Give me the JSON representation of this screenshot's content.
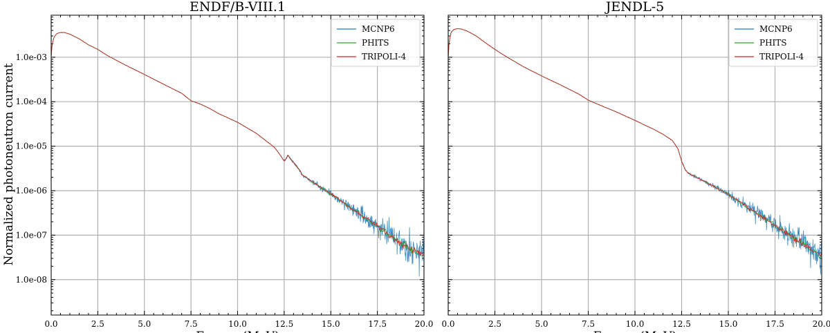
{
  "figure": {
    "ylabel": "Normalized photoneutron current"
  },
  "chart_data": [
    {
      "type": "line",
      "title": "ENDF/B-VIII.1",
      "xlabel": "Energy (MeV)",
      "ylabel": "Normalized photoneutron current",
      "xlim": [
        0,
        20
      ],
      "ylim": [
        1.6e-09,
        0.0088
      ],
      "yscale": "log",
      "grid": true,
      "legend_position": "top-right",
      "x_ticks": [
        0,
        2.5,
        5,
        7.5,
        10,
        12.5,
        15,
        17.5,
        20
      ],
      "x_tick_labels": [
        "0.0",
        "2.5",
        "5.0",
        "7.5",
        "10.0",
        "12.5",
        "15.0",
        "17.5",
        "20.0"
      ],
      "y_ticks": [
        0.001,
        0.0001,
        1e-05,
        1e-06,
        1e-07,
        1e-08
      ],
      "y_tick_labels": [
        "1.0e-03",
        "1.0e-04",
        "1.0e-05",
        "1.0e-06",
        "1.0e-07",
        "1.0e-08"
      ],
      "series": [
        {
          "name": "MCNP6",
          "color": "#1f77b4",
          "noise": "high"
        },
        {
          "name": "PHITS",
          "color": "#2ca02c",
          "noise": "low"
        },
        {
          "name": "TRIPOLI-4",
          "color": "#d62728",
          "noise": "low"
        }
      ],
      "reference_curve": {
        "x": [
          0,
          0.05,
          0.15,
          0.3,
          0.5,
          0.7,
          1.0,
          1.5,
          2.0,
          2.5,
          3.0,
          4.0,
          5.0,
          6.0,
          7.0,
          7.5,
          8.0,
          8.5,
          9.0,
          10.0,
          11.0,
          11.5,
          12.0,
          12.3,
          12.5,
          12.6,
          12.7,
          12.8,
          13.0,
          13.2,
          13.4,
          13.45,
          14.0,
          15.0,
          16.0,
          17.0,
          18.0,
          19.0,
          20.0
        ],
        "y": [
          0.00105,
          0.0019,
          0.0028,
          0.0034,
          0.0036,
          0.0036,
          0.0033,
          0.0026,
          0.0019,
          0.0015,
          0.0011,
          0.00066,
          0.00041,
          0.00025,
          0.000155,
          0.000105,
          8.85e-05,
          7.05e-05,
          5.35e-05,
          3.45e-05,
          1.95e-05,
          1.35e-05,
          9.2e-06,
          6.2e-06,
          4.6e-06,
          5.2e-06,
          6.3e-06,
          5.5e-06,
          4.3e-06,
          3.4e-06,
          2.6e-06,
          2.3e-06,
          1.6e-06,
          8.5e-07,
          4.4e-07,
          2.2e-07,
          1.1e-07,
          5.8e-08,
          3.4e-08
        ]
      }
    },
    {
      "type": "line",
      "title": "JENDL-5",
      "xlabel": "Energy (MeV)",
      "ylabel": "",
      "xlim": [
        0,
        20
      ],
      "ylim": [
        1.6e-09,
        0.0088
      ],
      "yscale": "log",
      "grid": true,
      "legend_position": "top-right",
      "x_ticks": [
        0,
        2.5,
        5,
        7.5,
        10,
        12.5,
        15,
        17.5,
        20
      ],
      "x_tick_labels": [
        "0.0",
        "2.5",
        "5.0",
        "7.5",
        "10.0",
        "12.5",
        "15.0",
        "17.5",
        "20.0"
      ],
      "y_ticks": [
        0.001,
        0.0001,
        1e-05,
        1e-06,
        1e-07,
        1e-08
      ],
      "y_tick_labels": [],
      "series": [
        {
          "name": "MCNP6",
          "color": "#1f77b4",
          "noise": "high"
        },
        {
          "name": "PHITS",
          "color": "#2ca02c",
          "noise": "low"
        },
        {
          "name": "TRIPOLI-4",
          "color": "#d62728",
          "noise": "low"
        }
      ],
      "reference_curve": {
        "x": [
          0,
          0.05,
          0.15,
          0.3,
          0.5,
          0.7,
          1.0,
          1.5,
          2.0,
          2.5,
          3.0,
          4.0,
          5.0,
          6.0,
          7.0,
          7.5,
          8.0,
          9.0,
          10.0,
          11.0,
          11.5,
          12.0,
          12.3,
          12.5,
          12.7,
          12.9,
          13.2,
          13.6,
          14.0,
          15.0,
          16.0,
          17.0,
          18.0,
          19.0,
          20.0
        ],
        "y": [
          0.001,
          0.0022,
          0.0036,
          0.0042,
          0.0044,
          0.0043,
          0.0039,
          0.003,
          0.0021,
          0.0015,
          0.0011,
          0.00062,
          0.00038,
          0.00024,
          0.000148,
          0.000108,
          8.8e-05,
          5.9e-05,
          3.8e-05,
          2.4e-05,
          1.85e-05,
          1.35e-05,
          8.8e-06,
          4.6e-06,
          2.9e-06,
          2.4e-06,
          2.1e-06,
          1.7e-06,
          1.4e-06,
          8.2e-07,
          4.3e-07,
          2.3e-07,
          1.2e-07,
          6.4e-08,
          3.3e-08
        ]
      }
    }
  ]
}
